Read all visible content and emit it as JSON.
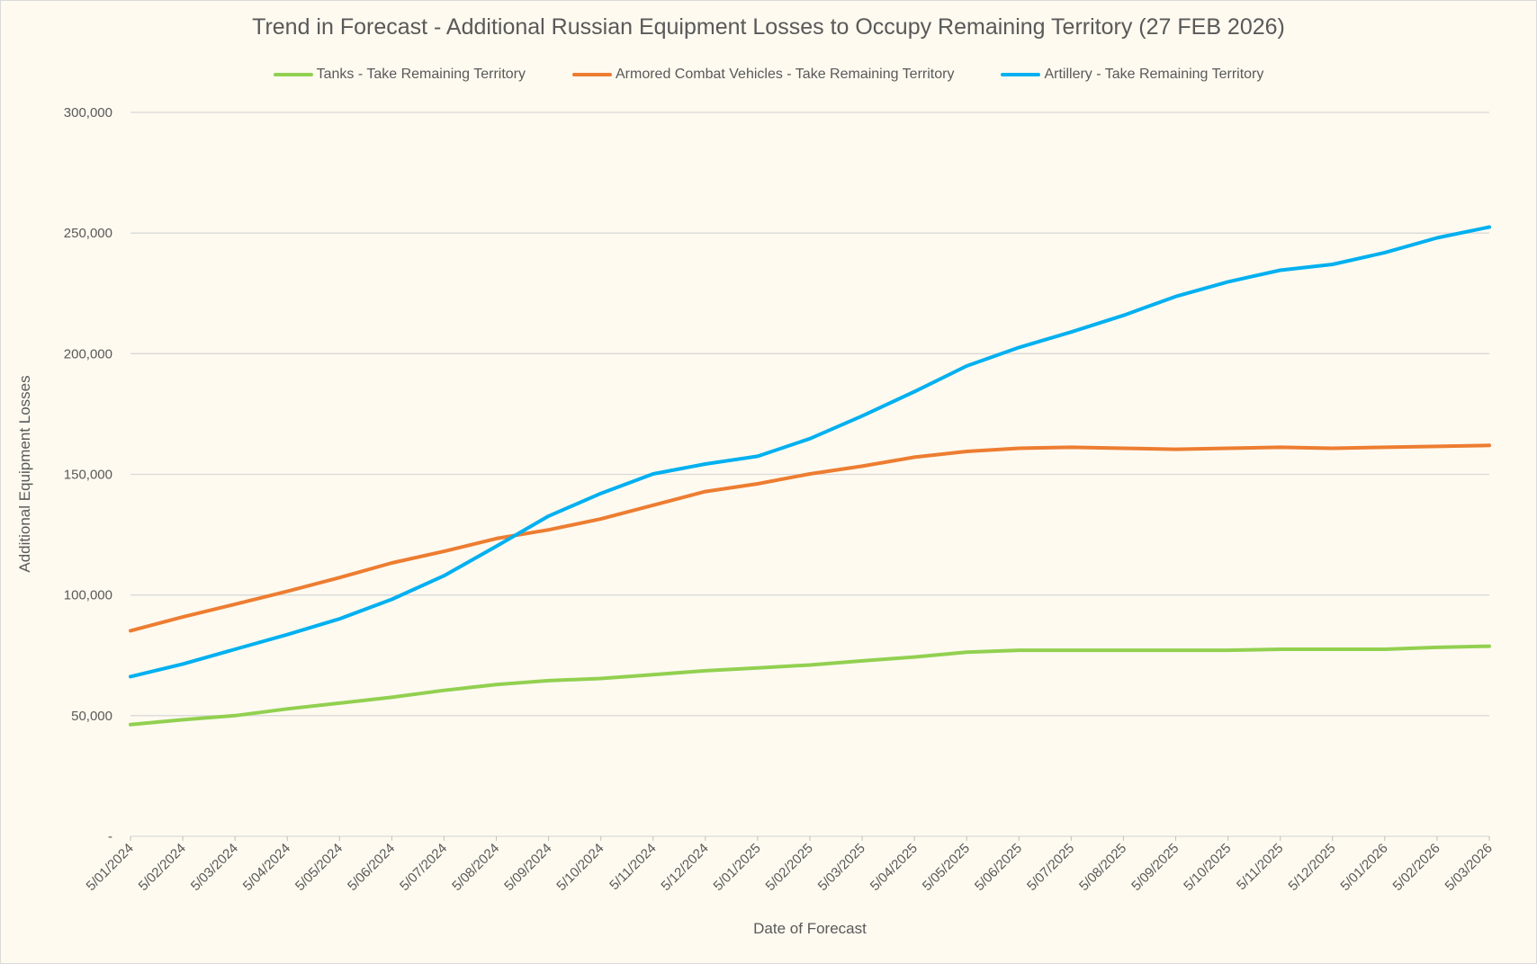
{
  "chart_data": {
    "type": "line",
    "title": "Trend in Forecast - Additional Russian Equipment Losses to Occupy Remaining Territory (27 FEB 2026)",
    "xlabel": "Date of Forecast",
    "ylabel": "Additional Equipment Losses",
    "ylim": [
      0,
      300000
    ],
    "yticks": [
      0,
      50000,
      100000,
      150000,
      200000,
      250000,
      300000
    ],
    "ytick_labels": [
      "-",
      "50,000",
      "100,000",
      "150,000",
      "200,000",
      "250,000",
      "300,000"
    ],
    "grid": true,
    "legend_position": "top",
    "categories": [
      "5/01/2024",
      "5/02/2024",
      "5/03/2024",
      "5/04/2024",
      "5/05/2024",
      "5/06/2024",
      "5/07/2024",
      "5/08/2024",
      "5/09/2024",
      "5/10/2024",
      "5/11/2024",
      "5/12/2024",
      "5/01/2025",
      "5/02/2025",
      "5/03/2025",
      "5/04/2025",
      "5/05/2025",
      "5/06/2025",
      "5/07/2025",
      "5/08/2025",
      "5/09/2025",
      "5/10/2025",
      "5/11/2025",
      "5/12/2025",
      "5/01/2026",
      "5/02/2026",
      "5/03/2026"
    ],
    "series": [
      {
        "name": "Tanks - Take Remaining Territory",
        "color": "#92d050",
        "values": [
          46300,
          48300,
          50000,
          52800,
          55200,
          57600,
          60500,
          62900,
          64500,
          65400,
          67000,
          68600,
          69800,
          71000,
          72700,
          74300,
          76300,
          77100,
          77100,
          77100,
          77100,
          77100,
          77500,
          77500,
          77500,
          78300,
          78800
        ]
      },
      {
        "name": "Armored Combat Vehicles - Take Remaining Territory",
        "color": "#ed7d31",
        "values": [
          85200,
          90900,
          96200,
          101500,
          107200,
          113300,
          118100,
          123400,
          127000,
          131500,
          137200,
          142900,
          146100,
          150200,
          153400,
          157100,
          159500,
          160800,
          161200,
          160800,
          160400,
          160800,
          161200,
          160800,
          161200,
          161600,
          162000
        ]
      },
      {
        "name": "Artillery - Take Remaining Territory",
        "color": "#00b0f0",
        "values": [
          66200,
          71400,
          77500,
          83600,
          90100,
          98200,
          108000,
          120200,
          132700,
          142100,
          150200,
          154300,
          157500,
          164800,
          174200,
          184300,
          194900,
          202600,
          209000,
          215900,
          223700,
          229800,
          234600,
          237000,
          241900,
          248000,
          252500
        ]
      }
    ]
  }
}
